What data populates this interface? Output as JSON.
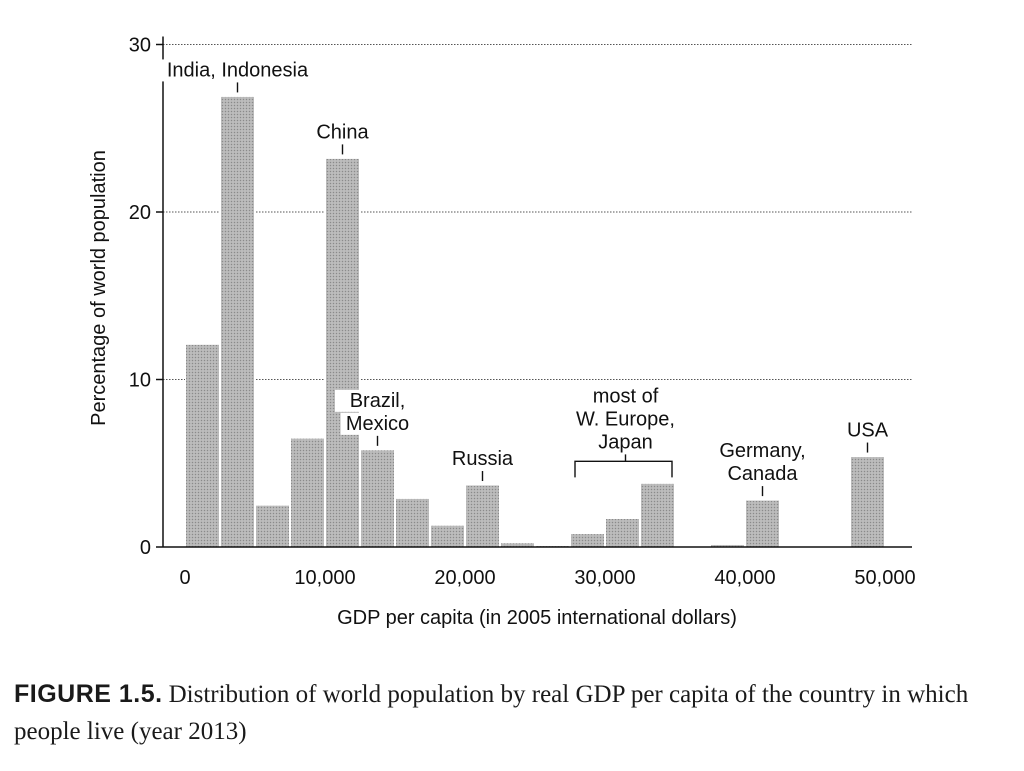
{
  "chart_data": {
    "type": "bar",
    "xlabel": "GDP per capita (in 2005 international dollars)",
    "ylabel": "Percentage of world population",
    "xlim": [
      0,
      52500
    ],
    "ylim": [
      0,
      30
    ],
    "x_ticks": [
      0,
      10000,
      20000,
      30000,
      40000,
      50000
    ],
    "x_tick_labels": [
      "0",
      "10,000",
      "20,000",
      "30,000",
      "40,000",
      "50,000"
    ],
    "y_ticks": [
      0,
      10,
      20,
      30
    ],
    "y_tick_labels": [
      "0",
      "10",
      "20",
      "30"
    ],
    "grid": "horizontal dotted",
    "bin_width": 2500,
    "bins": [
      {
        "from": 0,
        "to": 2500,
        "value": 12.1
      },
      {
        "from": 2500,
        "to": 5000,
        "value": 26.9
      },
      {
        "from": 5000,
        "to": 7500,
        "value": 2.5
      },
      {
        "from": 7500,
        "to": 10000,
        "value": 6.5
      },
      {
        "from": 10000,
        "to": 12500,
        "value": 23.2
      },
      {
        "from": 12500,
        "to": 15000,
        "value": 5.8
      },
      {
        "from": 15000,
        "to": 17500,
        "value": 2.9
      },
      {
        "from": 17500,
        "to": 20000,
        "value": 1.3
      },
      {
        "from": 20000,
        "to": 22500,
        "value": 3.7
      },
      {
        "from": 22500,
        "to": 25000,
        "value": 0.25
      },
      {
        "from": 25000,
        "to": 27500,
        "value": 0.05
      },
      {
        "from": 27500,
        "to": 30000,
        "value": 0.8
      },
      {
        "from": 30000,
        "to": 32500,
        "value": 1.7
      },
      {
        "from": 32500,
        "to": 35000,
        "value": 3.8
      },
      {
        "from": 35000,
        "to": 37500,
        "value": 0
      },
      {
        "from": 37500,
        "to": 40000,
        "value": 0.15
      },
      {
        "from": 40000,
        "to": 42500,
        "value": 2.8
      },
      {
        "from": 42500,
        "to": 45000,
        "value": 0
      },
      {
        "from": 45000,
        "to": 47500,
        "value": 0
      },
      {
        "from": 47500,
        "to": 50000,
        "value": 5.4
      }
    ],
    "annotations": [
      {
        "lines": [
          "India, Indonesia"
        ],
        "bin": 1
      },
      {
        "lines": [
          "China"
        ],
        "bin": 4
      },
      {
        "lines": [
          "Brazil,",
          "Mexico"
        ],
        "bin": 5
      },
      {
        "lines": [
          "Russia"
        ],
        "bin": 8
      },
      {
        "lines": [
          "most of",
          "W. Europe,",
          "Japan"
        ],
        "bins": [
          11,
          13
        ]
      },
      {
        "lines": [
          "Germany,",
          "Canada"
        ],
        "bin": 16
      },
      {
        "lines": [
          "USA"
        ],
        "bin": 19
      }
    ]
  },
  "caption": {
    "label": "FIGURE 1.5.",
    "text": "Distribution of world population by real GDP per capita of the country in which people live (year 2013)"
  }
}
